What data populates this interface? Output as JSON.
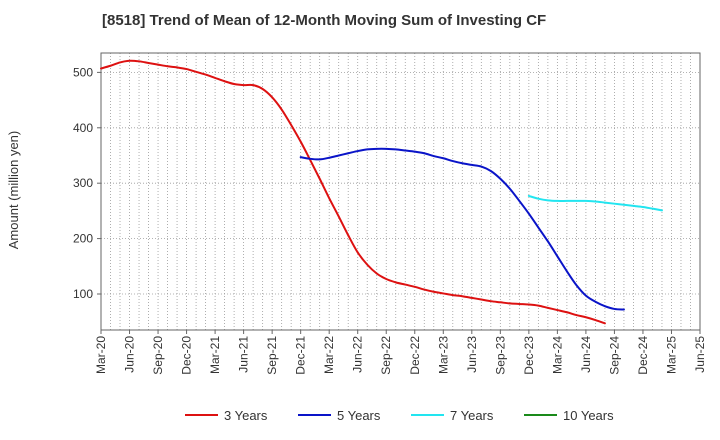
{
  "chart_data": {
    "type": "line",
    "title": "[8518]  Trend of Mean of 12-Month Moving Sum of Investing CF",
    "xlabel": "",
    "ylabel": "Amount (million yen)",
    "ylim": [
      35,
      535
    ],
    "yticks": [
      100,
      200,
      300,
      400,
      500
    ],
    "x_tick_labels": [
      "Mar-20",
      "Jun-20",
      "Sep-20",
      "Dec-20",
      "Mar-21",
      "Jun-21",
      "Sep-21",
      "Dec-21",
      "Mar-22",
      "Jun-22",
      "Sep-22",
      "Dec-22",
      "Mar-23",
      "Jun-23",
      "Sep-23",
      "Dec-23",
      "Mar-24",
      "Jun-24",
      "Sep-24",
      "Dec-24",
      "Mar-25",
      "Jun-25"
    ],
    "x_months_start": "Mar-20",
    "x_months_end": "Jun-25",
    "grid": true,
    "legend_position": "bottom",
    "series": [
      {
        "name": "3 Years",
        "color": "#dd1111",
        "start_month_index": 0,
        "values": [
          507,
          512,
          518,
          521,
          520,
          517,
          514,
          511,
          509,
          506,
          501,
          496,
          490,
          484,
          479,
          477,
          477,
          470,
          455,
          433,
          405,
          375,
          342,
          308,
          273,
          240,
          206,
          175,
          153,
          137,
          127,
          121,
          117,
          113,
          108,
          104,
          101,
          98,
          96,
          93,
          90,
          87,
          85,
          83,
          82,
          81,
          79,
          75,
          71,
          67,
          62,
          58,
          53,
          47
        ]
      },
      {
        "name": "5 Years",
        "color": "#0a14c8",
        "start_month_index": 21,
        "values": [
          347,
          344,
          343,
          346,
          350,
          354,
          358,
          361,
          362,
          362,
          361,
          359,
          357,
          354,
          349,
          345,
          340,
          336,
          333,
          330,
          322,
          308,
          290,
          268,
          245,
          220,
          195,
          168,
          141,
          116,
          97,
          86,
          78,
          73,
          72
        ]
      },
      {
        "name": "7 Years",
        "color": "#22e5f0",
        "start_month_index": 45,
        "values": [
          277,
          272,
          269,
          268,
          268,
          268,
          268,
          267,
          265,
          263,
          261,
          259,
          257,
          254,
          251
        ]
      },
      {
        "name": "10 Years",
        "color": "#1a8a1a",
        "start_month_index": 0,
        "values": []
      }
    ]
  }
}
